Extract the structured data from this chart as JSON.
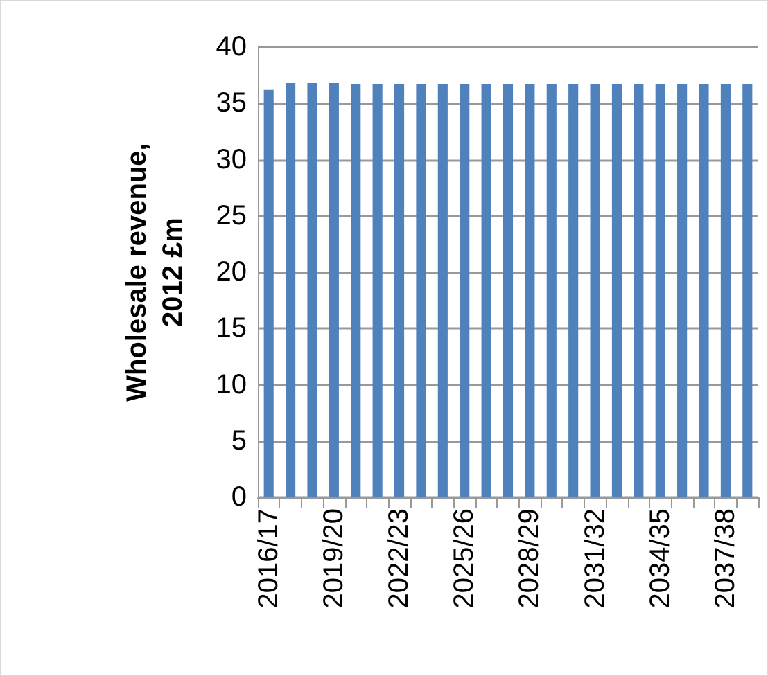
{
  "chart_data": {
    "type": "bar",
    "ylabel": "Wholesale revenue,\n2012 £m",
    "categories": [
      "2016/17",
      null,
      null,
      "2019/20",
      null,
      null,
      "2022/23",
      null,
      null,
      "2025/26",
      null,
      null,
      "2028/29",
      null,
      null,
      "2031/32",
      null,
      null,
      "2034/35",
      null,
      null,
      "2037/38",
      null
    ],
    "values": [
      36.2,
      36.8,
      36.8,
      36.8,
      36.7,
      36.7,
      36.7,
      36.7,
      36.7,
      36.7,
      36.7,
      36.7,
      36.7,
      36.7,
      36.7,
      36.7,
      36.7,
      36.7,
      36.7,
      36.7,
      36.7,
      36.7,
      36.7
    ],
    "color": "#4f81bd",
    "ylim": [
      0,
      40
    ],
    "yticks": [
      0,
      5,
      10,
      15,
      20,
      25,
      30,
      35,
      40
    ],
    "grid": "y"
  }
}
